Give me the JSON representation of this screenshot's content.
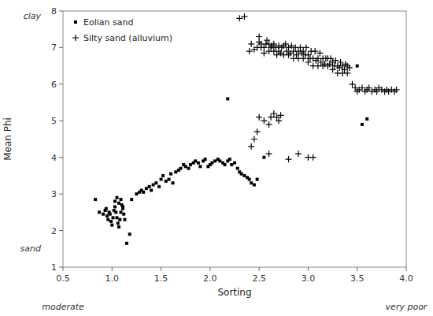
{
  "chart_data": {
    "type": "scatter",
    "xlabel": "Sorting",
    "ylabel": "Mean Phi",
    "annotations": [
      "moderate",
      "very poor",
      "clay",
      "sand"
    ],
    "xlim": [
      0.5,
      4.0
    ],
    "ylim": [
      1.0,
      8.0
    ],
    "xticks": [
      0.5,
      {
        "value": 1.0,
        "label": "1.0"
      },
      1.5,
      {
        "value": 2.0,
        "label": "2.0"
      },
      2.5,
      {
        "value": 3.0,
        "label": "3.0"
      },
      3.5,
      {
        "value": 4.0,
        "label": "4.0"
      }
    ],
    "yticks": [
      1,
      2,
      3,
      4,
      5,
      6,
      7,
      8
    ],
    "grid": false,
    "legend": "upper left",
    "series": [
      {
        "name": "Eolian sand",
        "color": "black",
        "marker": "square",
        "x": [
          0.83,
          0.87,
          0.91,
          0.93,
          0.94,
          0.95,
          0.96,
          0.97,
          0.98,
          0.99,
          1.0,
          1.01,
          1.02,
          1.03,
          1.04,
          1.05,
          1.06,
          1.07,
          1.08,
          1.09,
          1.1,
          1.11,
          1.12,
          1.13,
          1.03,
          1.05,
          1.07,
          1.09,
          1.11,
          1.15,
          1.18,
          1.2,
          1.25,
          1.28,
          1.3,
          1.32,
          1.35,
          1.38,
          1.4,
          1.42,
          1.45,
          1.48,
          1.5,
          1.52,
          1.55,
          1.58,
          1.6,
          1.62,
          1.65,
          1.68,
          1.7,
          1.73,
          1.75,
          1.78,
          1.8,
          1.83,
          1.85,
          1.88,
          1.9,
          1.93,
          1.95,
          1.98,
          2.0,
          2.02,
          2.05,
          2.08,
          2.1,
          2.13,
          2.15,
          2.18,
          2.2,
          2.22,
          2.25,
          2.28,
          2.3,
          2.32,
          2.35,
          2.38,
          2.4,
          2.42,
          2.45,
          2.48,
          2.18,
          2.55,
          3.5,
          3.55,
          3.6
        ],
        "values": [
          2.85,
          2.5,
          2.45,
          2.55,
          2.6,
          2.4,
          2.3,
          2.5,
          2.45,
          2.25,
          2.15,
          2.35,
          2.55,
          2.65,
          2.5,
          2.35,
          2.2,
          2.1,
          2.3,
          2.5,
          2.7,
          2.6,
          2.45,
          2.3,
          2.8,
          2.9,
          2.75,
          2.85,
          2.65,
          1.65,
          1.9,
          2.85,
          3.0,
          3.05,
          3.1,
          3.05,
          3.15,
          3.2,
          3.1,
          3.25,
          3.3,
          3.2,
          3.4,
          3.5,
          3.35,
          3.4,
          3.55,
          3.3,
          3.6,
          3.65,
          3.7,
          3.8,
          3.75,
          3.7,
          3.8,
          3.85,
          3.9,
          3.85,
          3.75,
          3.9,
          3.95,
          3.75,
          3.8,
          3.85,
          3.9,
          3.95,
          3.9,
          3.85,
          3.8,
          3.9,
          3.95,
          3.8,
          3.85,
          3.7,
          3.6,
          3.55,
          3.5,
          3.45,
          3.4,
          3.3,
          3.25,
          3.4,
          5.6,
          4.0,
          6.5,
          4.9,
          5.05
        ]
      },
      {
        "name": "Silty sand (alluvium)",
        "color": "black",
        "marker": "plus",
        "x": [
          2.42,
          2.45,
          2.48,
          2.5,
          2.5,
          2.52,
          2.52,
          2.55,
          2.55,
          2.57,
          2.58,
          2.6,
          2.6,
          2.62,
          2.63,
          2.65,
          2.65,
          2.67,
          2.68,
          2.7,
          2.7,
          2.72,
          2.73,
          2.75,
          2.75,
          2.77,
          2.78,
          2.8,
          2.8,
          2.82,
          2.83,
          2.85,
          2.85,
          2.87,
          2.88,
          2.9,
          2.9,
          2.92,
          2.93,
          2.95,
          2.95,
          2.97,
          2.98,
          3.0,
          3.0,
          3.02,
          3.03,
          3.05,
          3.05,
          3.07,
          3.08,
          3.1,
          3.1,
          3.12,
          3.13,
          3.15,
          3.15,
          3.17,
          3.18,
          3.2,
          3.2,
          3.22,
          3.23,
          3.25,
          3.25,
          3.27,
          3.28,
          3.3,
          3.3,
          3.32,
          3.33,
          3.35,
          3.35,
          3.37,
          3.38,
          3.4,
          3.4,
          3.42,
          3.45,
          3.48,
          3.5,
          3.52,
          3.55,
          3.58,
          3.6,
          3.62,
          3.65,
          3.68,
          3.7,
          3.72,
          3.75,
          3.78,
          3.8,
          3.82,
          3.85,
          3.88,
          3.9,
          2.55,
          2.6,
          2.62,
          2.65,
          2.68,
          2.7,
          2.72,
          2.42,
          2.45,
          2.48,
          2.5,
          2.6,
          2.8,
          2.9,
          3.0,
          3.05,
          2.3,
          2.35,
          2.4
        ],
        "values": [
          7.1,
          6.95,
          7.0,
          7.15,
          7.3,
          7.1,
          7.0,
          6.85,
          7.0,
          7.1,
          7.2,
          7.1,
          6.9,
          7.0,
          7.05,
          6.9,
          7.1,
          7.0,
          6.8,
          6.9,
          7.05,
          6.85,
          7.0,
          6.8,
          7.05,
          7.1,
          6.9,
          6.8,
          7.0,
          6.85,
          7.05,
          6.7,
          6.9,
          7.0,
          6.8,
          6.7,
          6.9,
          7.0,
          6.85,
          6.7,
          6.9,
          6.8,
          7.0,
          6.6,
          6.8,
          6.7,
          6.9,
          6.5,
          6.7,
          6.9,
          6.65,
          6.5,
          6.7,
          6.85,
          6.6,
          6.5,
          6.7,
          6.55,
          6.7,
          6.5,
          6.7,
          6.55,
          6.7,
          6.4,
          6.6,
          6.5,
          6.65,
          6.3,
          6.5,
          6.45,
          6.6,
          6.3,
          6.5,
          6.4,
          6.55,
          6.3,
          6.5,
          6.45,
          6.0,
          5.9,
          5.8,
          5.85,
          5.9,
          5.8,
          5.85,
          5.9,
          5.8,
          5.85,
          5.8,
          5.9,
          5.85,
          5.8,
          5.85,
          5.8,
          5.85,
          5.8,
          5.85,
          5.0,
          4.9,
          5.1,
          5.2,
          5.1,
          5.0,
          5.15,
          4.3,
          4.5,
          4.7,
          5.1,
          4.1,
          3.95,
          4.1,
          4.0,
          4.0,
          7.8,
          7.85,
          6.9
        ]
      }
    ]
  }
}
